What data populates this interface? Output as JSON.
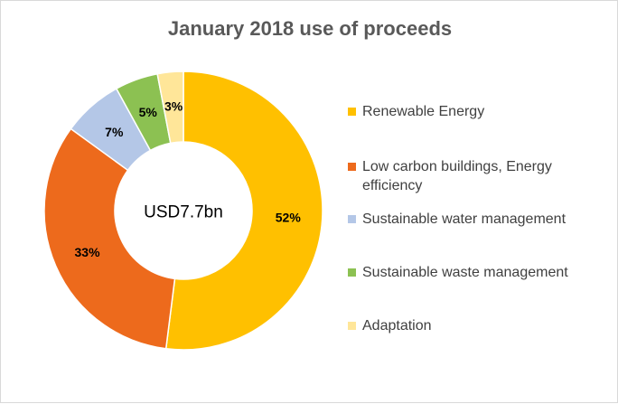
{
  "chart_data": {
    "type": "pie",
    "variant": "doughnut",
    "title": "January 2018 use of proceeds",
    "center_label": "USD7.7bn",
    "categories": [
      "Renewable Energy",
      "Low carbon buildings, Energy efficiency",
      "Sustainable water management",
      "Sustainable waste management",
      "Adaptation"
    ],
    "values": [
      52,
      33,
      7,
      5,
      3
    ],
    "value_labels": [
      "52%",
      "33%",
      "7%",
      "5%",
      "3%"
    ],
    "colors": [
      "#FFC000",
      "#ED6A1C",
      "#B4C7E7",
      "#8CC152",
      "#FFE699"
    ],
    "legend_position": "right"
  }
}
